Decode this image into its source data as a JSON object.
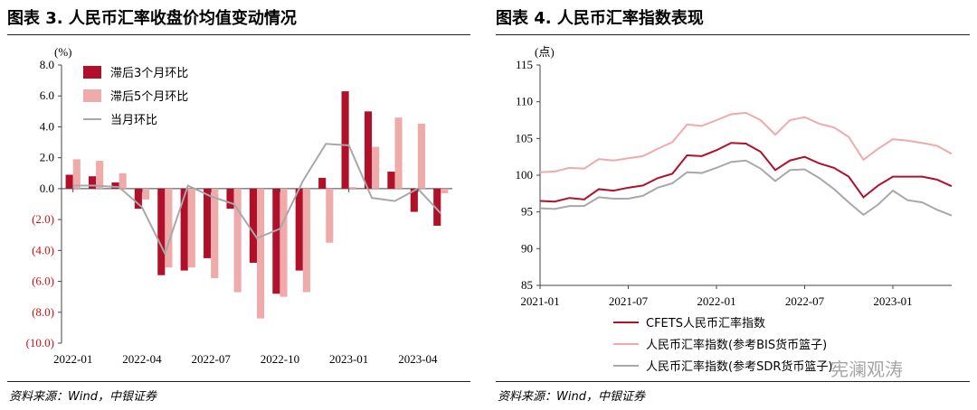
{
  "left_panel": {
    "title": "图表 3. 人民币汇率收盘价均值变动情况",
    "source": "资料来源：Wind，中银证券"
  },
  "right_panel": {
    "title": "图表 4. 人民币汇率指数表现",
    "source": "资料来源：Wind，中银证券"
  },
  "watermark": "宪澜观涛",
  "colors": {
    "dark_red": "#b0102a",
    "light_pink": "#efaaaa",
    "gray": "#a8a8a8"
  },
  "chart_data": [
    {
      "type": "bar",
      "unit_label": "(%)",
      "ylim": [
        -10,
        8
      ],
      "yticks": [
        "8.0",
        "6.0",
        "4.0",
        "2.0",
        "0.0",
        "(2.0)",
        "(4.0)",
        "(6.0)",
        "(8.0)",
        "(10.0)"
      ],
      "ytick_values": [
        8,
        6,
        4,
        2,
        0,
        -2,
        -4,
        -6,
        -8,
        -10
      ],
      "categories": [
        "2022-01",
        "2022-02",
        "2022-03",
        "2022-04",
        "2022-05",
        "2022-06",
        "2022-07",
        "2022-08",
        "2022-09",
        "2022-10",
        "2022-11",
        "2022-12",
        "2023-01",
        "2023-02",
        "2023-03",
        "2023-04",
        "2023-05"
      ],
      "xtick_labels": [
        "2022-01",
        "2022-04",
        "2022-07",
        "2022-10",
        "2023-01",
        "2023-04"
      ],
      "xtick_indices": [
        0,
        3,
        6,
        9,
        12,
        15
      ],
      "legend_position": "top-left",
      "series": [
        {
          "name": "滞后3个月环比",
          "kind": "bar",
          "values": [
            0.9,
            0.8,
            0.4,
            -1.3,
            -5.6,
            -5.3,
            -4.5,
            -1.3,
            -4.8,
            -6.8,
            -5.3,
            0.7,
            6.3,
            5.0,
            1.1,
            -1.5,
            -2.4
          ]
        },
        {
          "name": "滞后5个月环比",
          "kind": "bar",
          "values": [
            1.9,
            1.8,
            1.0,
            -0.7,
            -5.1,
            -5.1,
            -5.8,
            -6.7,
            -8.4,
            -7.0,
            -6.7,
            -3.5,
            0.1,
            2.7,
            4.6,
            4.2,
            -0.3
          ]
        },
        {
          "name": "当月环比",
          "kind": "line",
          "values": [
            0.2,
            0.2,
            0.1,
            -1.2,
            -4.2,
            0.2,
            -0.5,
            -1.0,
            -3.2,
            -2.6,
            0.5,
            2.9,
            2.8,
            -0.6,
            -0.8,
            0.0,
            -1.6
          ]
        }
      ]
    },
    {
      "type": "line",
      "unit_label": "(点)",
      "ylim": [
        85,
        115
      ],
      "yticks": [
        "115",
        "110",
        "105",
        "100",
        "95",
        "90",
        "85"
      ],
      "ytick_values": [
        115,
        110,
        105,
        100,
        95,
        90,
        85
      ],
      "x": [
        "2021-01",
        "2021-02",
        "2021-03",
        "2021-04",
        "2021-05",
        "2021-06",
        "2021-07",
        "2021-08",
        "2021-09",
        "2021-10",
        "2021-11",
        "2021-12",
        "2022-01",
        "2022-02",
        "2022-03",
        "2022-04",
        "2022-05",
        "2022-06",
        "2022-07",
        "2022-08",
        "2022-09",
        "2022-10",
        "2022-11",
        "2022-12",
        "2023-01",
        "2023-02",
        "2023-03",
        "2023-04",
        "2023-05"
      ],
      "xtick_labels": [
        "2021-01",
        "2021-07",
        "2022-01",
        "2022-07",
        "2023-01"
      ],
      "xtick_indices": [
        0,
        6,
        12,
        18,
        24
      ],
      "legend_position": "bottom",
      "series": [
        {
          "name": "CFETS人民币汇率指数",
          "values": [
            96.5,
            96.4,
            96.9,
            96.7,
            98.1,
            97.9,
            98.3,
            98.6,
            99.6,
            100.2,
            102.7,
            102.6,
            103.4,
            104.4,
            104.3,
            103.2,
            100.7,
            102.0,
            102.5,
            101.6,
            101.0,
            99.8,
            97.0,
            98.6,
            99.8,
            99.8,
            99.8,
            99.4,
            98.5
          ]
        },
        {
          "name": "人民币汇率指数(参考BIS货币篮子)",
          "values": [
            100.4,
            100.5,
            101.0,
            100.9,
            102.2,
            102.0,
            102.3,
            102.6,
            103.6,
            104.5,
            106.9,
            106.7,
            107.5,
            108.3,
            108.5,
            107.5,
            105.5,
            107.5,
            107.9,
            107.0,
            106.5,
            105.2,
            102.1,
            103.6,
            104.9,
            104.7,
            104.4,
            104.0,
            102.9
          ]
        },
        {
          "name": "人民币汇率指数(参考SDR货币篮子)",
          "values": [
            95.5,
            95.4,
            95.8,
            95.8,
            97.0,
            96.8,
            96.8,
            97.2,
            98.3,
            98.9,
            100.4,
            100.3,
            101.0,
            101.8,
            102.0,
            100.9,
            99.2,
            100.7,
            100.8,
            99.6,
            98.1,
            96.3,
            94.6,
            96.0,
            97.9,
            96.6,
            96.3,
            95.3,
            94.5
          ]
        }
      ]
    }
  ]
}
